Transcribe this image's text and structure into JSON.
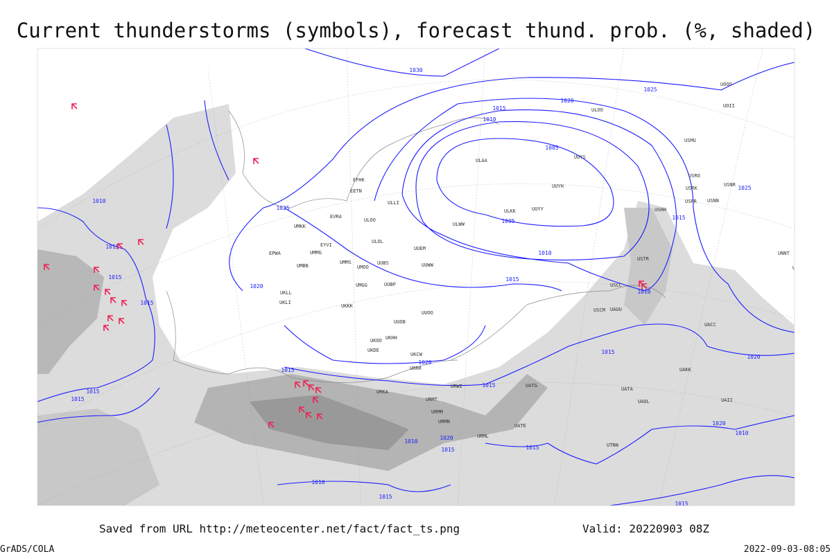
{
  "title": "Current thunderstorms (symbols), forecast thund. prob. (%, shaded)",
  "footer": {
    "saved": "Saved from URL http://meteocenter.net/fact/fact_ts.png",
    "valid": "Valid: 20220903 08Z",
    "credit": "GrADS/COLA",
    "timestamp": "2022-09-03-08:05"
  },
  "isobar_labels": [
    "1030",
    "1025",
    "1020",
    "1015",
    "1010",
    "1005",
    "1005",
    "1010",
    "1015",
    "1010",
    "1015",
    "1025",
    "1025",
    "1010",
    "1015",
    "1015",
    "1015",
    "1020",
    "1015",
    "1020",
    "1015",
    "1015",
    "1020",
    "1015",
    "1015",
    "1015",
    "1020",
    "1015",
    "1010",
    "1010",
    "1015",
    "1020",
    "1010",
    "1015"
  ],
  "stations": [
    "ULAA",
    "UUYY",
    "UUYH",
    "ULKK",
    "ULWW",
    "UUYS",
    "ULOO",
    "UOOO",
    "UOII",
    "USMU",
    "USRO",
    "USNR",
    "USRK",
    "USRR",
    "USNN",
    "USHH",
    "USTR",
    "USCC",
    "USCM",
    "UAUU",
    "UACC",
    "UNBB",
    "UNNT",
    "UUEM",
    "UUWW",
    "ULOL",
    "ULOO",
    "EVRA",
    "ULLI",
    "EETN",
    "EFHK",
    "UMKK",
    "EYVI",
    "UMMG",
    "UMMS",
    "UMOO",
    "UUBS",
    "UMBB",
    "EPWA",
    "UKLL",
    "UKLI",
    "UKKK",
    "UUBP",
    "UMGG",
    "UUOO",
    "UUOB",
    "UKHH",
    "UKOO",
    "UKDE",
    "UKCW",
    "URRR",
    "URWI",
    "URKA",
    "URMT",
    "URMM",
    "URMN",
    "URML",
    "UATG",
    "UATE",
    "UAOL",
    "UATA",
    "UTNN",
    "UAKK",
    "UAII"
  ]
}
